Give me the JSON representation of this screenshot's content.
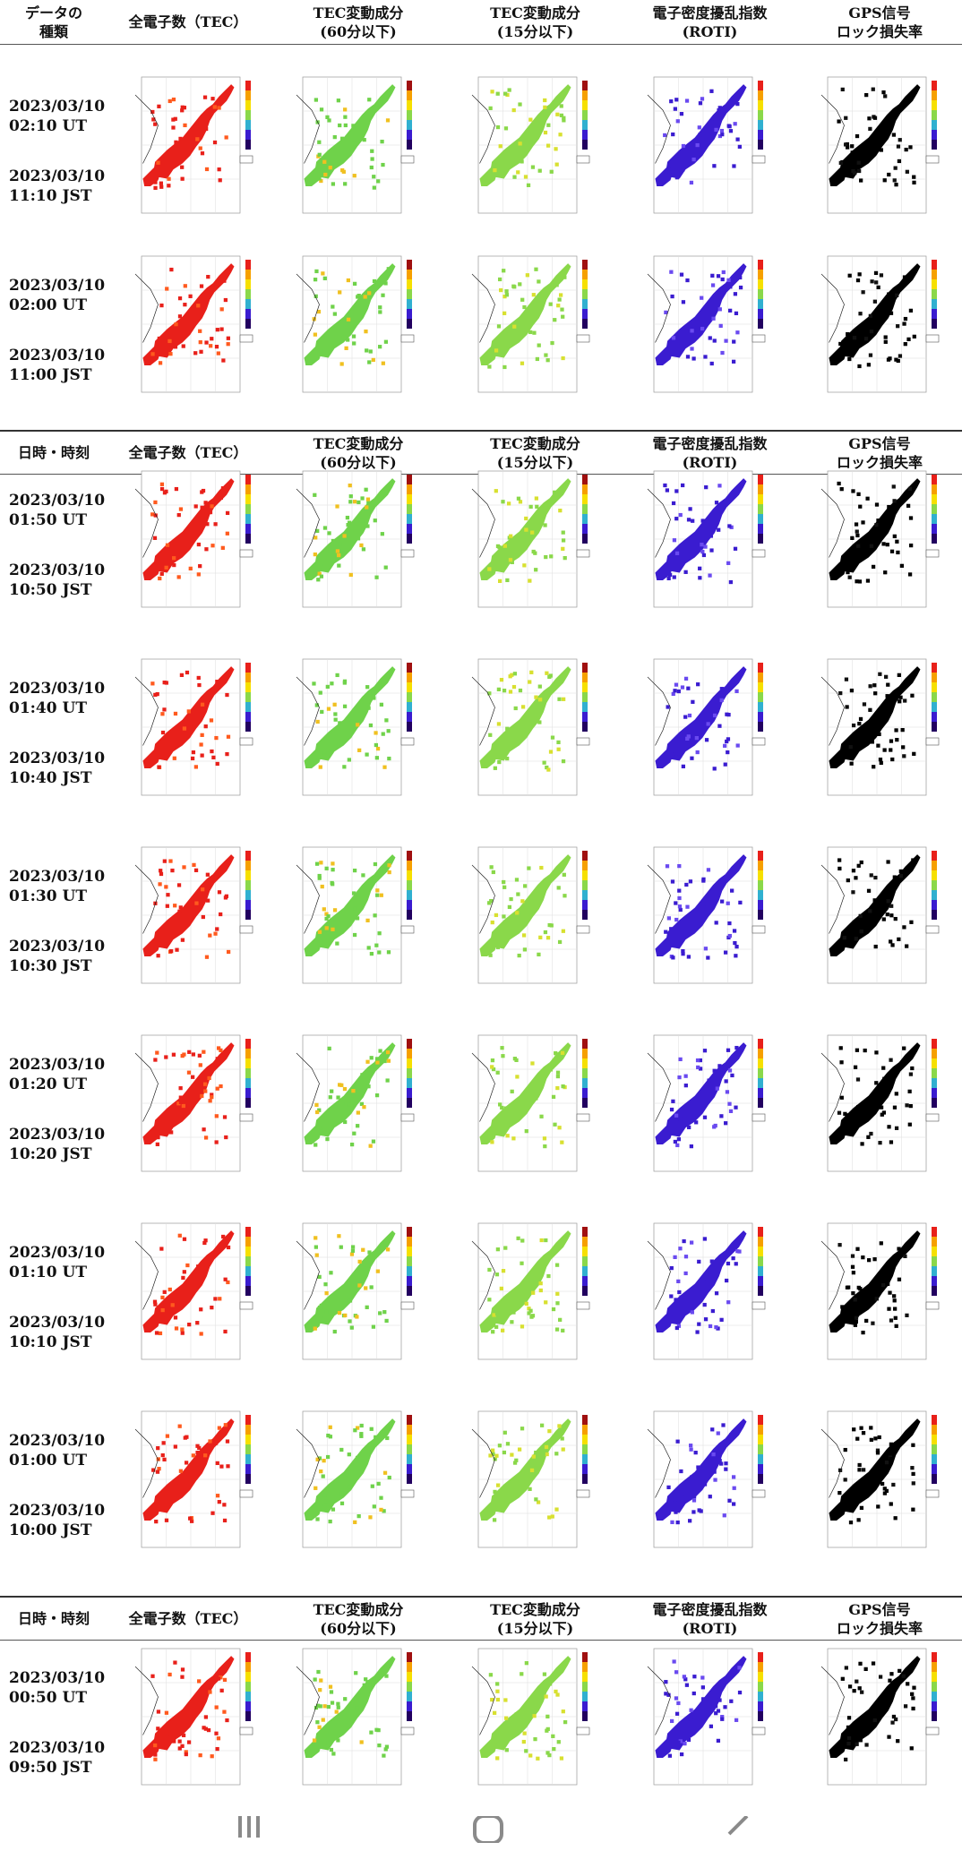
{
  "headers": [
    {
      "col1": [
        "データの",
        "種類"
      ],
      "col2": [
        "全電子数（TEC）"
      ],
      "col3": [
        "TEC変動成分",
        "(60分以下)"
      ],
      "col4": [
        "TEC変動成分",
        "(15分以下)"
      ],
      "col5": [
        "電子密度擾乱指数",
        "(ROTI)"
      ],
      "col6": [
        "GPS信号",
        "ロック損失率"
      ]
    },
    {
      "col1": [
        "日時・時刻"
      ],
      "col2": [
        "全電子数（TEC）"
      ],
      "col3": [
        "TEC変動成分",
        "(60分以下)"
      ],
      "col4": [
        "TEC変動成分",
        "(15分以下)"
      ],
      "col5": [
        "電子密度擾乱指数",
        "(ROTI)"
      ],
      "col6": [
        "GPS信号",
        "ロック損失率"
      ]
    },
    {
      "col1": [
        "日時・時刻"
      ],
      "col2": [
        "全電子数（TEC）"
      ],
      "col3": [
        "TEC変動成分",
        "(60分以下)"
      ],
      "col4": [
        "TEC変動成分",
        "(15分以下)"
      ],
      "col5": [
        "電子密度擾乱指数",
        "(ROTI)"
      ],
      "col6": [
        "GPS信号",
        "ロック損失率"
      ]
    }
  ],
  "rows": [
    {
      "ut": "2023/03/10",
      "ut_time": "02:10 UT",
      "jst": "2023/03/10",
      "jst_time": "11:10 JST"
    },
    {
      "ut": "2023/03/10",
      "ut_time": "02:00 UT",
      "jst": "2023/03/10",
      "jst_time": "11:00 JST"
    },
    {
      "ut": "2023/03/10",
      "ut_time": "01:50 UT",
      "jst": "2023/03/10",
      "jst_time": "10:50 JST"
    },
    {
      "ut": "2023/03/10",
      "ut_time": "01:40 UT",
      "jst": "2023/03/10",
      "jst_time": "10:40 JST"
    },
    {
      "ut": "2023/03/10",
      "ut_time": "01:30 UT",
      "jst": "2023/03/10",
      "jst_time": "10:30 JST"
    },
    {
      "ut": "2023/03/10",
      "ut_time": "01:20 UT",
      "jst": "2023/03/10",
      "jst_time": "10:20 JST"
    },
    {
      "ut": "2023/03/10",
      "ut_time": "01:10 UT",
      "jst": "2023/03/10",
      "jst_time": "10:10 JST"
    },
    {
      "ut": "2023/03/10",
      "ut_time": "01:00 UT",
      "jst": "2023/03/10",
      "jst_time": "10:00 JST"
    },
    {
      "ut": "2023/03/10",
      "ut_time": "00:50 UT",
      "jst": "2023/03/10",
      "jst_time": "09:50 JST"
    }
  ],
  "map_kinds": [
    {
      "id": "tec",
      "base": "#e8201a",
      "accent": "#ff5a1e"
    },
    {
      "id": "dtec60",
      "base": "#6fd24a",
      "accent": "#f0c020"
    },
    {
      "id": "dtec15",
      "base": "#8ad84a",
      "accent": "#d8e030"
    },
    {
      "id": "roti",
      "base": "#3a1cd0",
      "accent": "#6a4af0"
    },
    {
      "id": "lol",
      "base": "#000000",
      "accent": "#111111"
    }
  ],
  "nav": {
    "recent": "recents-icon",
    "home": "home-icon",
    "back": "back-icon"
  }
}
